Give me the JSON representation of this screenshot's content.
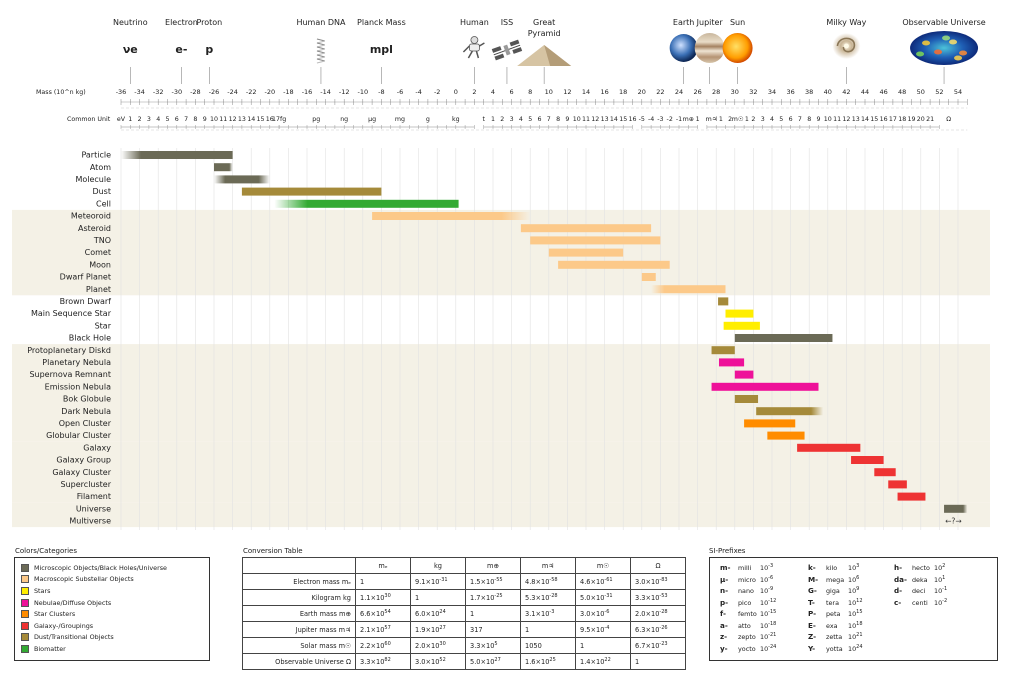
{
  "chart_data": {
    "type": "range-bar",
    "x_label_mass": "Mass (10^n kg)",
    "x_label_common": "Common Unit",
    "mass_ticks": [
      -36,
      -34,
      -32,
      -30,
      -28,
      -26,
      -24,
      -22,
      -20,
      -18,
      -16,
      -14,
      -12,
      -10,
      -8,
      -6,
      -4,
      -2,
      0,
      2,
      4,
      6,
      8,
      10,
      12,
      14,
      16,
      18,
      20,
      22,
      24,
      26,
      28,
      30,
      32,
      34,
      36,
      38,
      40,
      42,
      44,
      46,
      48,
      50,
      52,
      54
    ],
    "xlim": [
      -36,
      55
    ],
    "common_units": [
      {
        "x": -36,
        "t": "eV"
      },
      {
        "x": -35,
        "t": "1"
      },
      {
        "x": -34,
        "t": "2"
      },
      {
        "x": -33,
        "t": "3"
      },
      {
        "x": -32,
        "t": "4"
      },
      {
        "x": -31,
        "t": "5"
      },
      {
        "x": -30,
        "t": "6"
      },
      {
        "x": -29,
        "t": "7"
      },
      {
        "x": -28,
        "t": "8"
      },
      {
        "x": -27,
        "t": "9"
      },
      {
        "x": -26,
        "t": "10"
      },
      {
        "x": -25,
        "t": "11"
      },
      {
        "x": -24,
        "t": "12"
      },
      {
        "x": -23,
        "t": "13"
      },
      {
        "x": -22,
        "t": "14"
      },
      {
        "x": -21,
        "t": "15"
      },
      {
        "x": -20,
        "t": "16"
      },
      {
        "x": -19,
        "t": "17fg"
      },
      {
        "x": -15,
        "t": "pg"
      },
      {
        "x": -12,
        "t": "ng"
      },
      {
        "x": -9,
        "t": "µg"
      },
      {
        "x": -6,
        "t": "mg"
      },
      {
        "x": -3,
        "t": "g"
      },
      {
        "x": 0,
        "t": "kg"
      },
      {
        "x": 3,
        "t": "t"
      },
      {
        "x": 4,
        "t": "1"
      },
      {
        "x": 5,
        "t": "2"
      },
      {
        "x": 6,
        "t": "3"
      },
      {
        "x": 7,
        "t": "4"
      },
      {
        "x": 8,
        "t": "5"
      },
      {
        "x": 9,
        "t": "6"
      },
      {
        "x": 10,
        "t": "7"
      },
      {
        "x": 11,
        "t": "8"
      },
      {
        "x": 12,
        "t": "9"
      },
      {
        "x": 13,
        "t": "10"
      },
      {
        "x": 14,
        "t": "11"
      },
      {
        "x": 15,
        "t": "12"
      },
      {
        "x": 16,
        "t": "13"
      },
      {
        "x": 17,
        "t": "14"
      },
      {
        "x": 18,
        "t": "15"
      },
      {
        "x": 19,
        "t": "16"
      },
      {
        "x": 20,
        "t": "-5"
      },
      {
        "x": 21,
        "t": "-4"
      },
      {
        "x": 22,
        "t": "-3"
      },
      {
        "x": 23,
        "t": "-2"
      },
      {
        "x": 24,
        "t": "-1"
      },
      {
        "x": 25,
        "t": "m⊕"
      },
      {
        "x": 26,
        "t": "1"
      },
      {
        "x": 27.5,
        "t": "m♃"
      },
      {
        "x": 28.5,
        "t": "1"
      },
      {
        "x": 29.5,
        "t": "2"
      },
      {
        "x": 30.3,
        "t": "m☉"
      },
      {
        "x": 31.3,
        "t": "1"
      },
      {
        "x": 32,
        "t": "2"
      },
      {
        "x": 33,
        "t": "3"
      },
      {
        "x": 34,
        "t": "4"
      },
      {
        "x": 35,
        "t": "5"
      },
      {
        "x": 36,
        "t": "6"
      },
      {
        "x": 37,
        "t": "7"
      },
      {
        "x": 38,
        "t": "8"
      },
      {
        "x": 39,
        "t": "9"
      },
      {
        "x": 40,
        "t": "10"
      },
      {
        "x": 41,
        "t": "11"
      },
      {
        "x": 42,
        "t": "12"
      },
      {
        "x": 43,
        "t": "13"
      },
      {
        "x": 44,
        "t": "14"
      },
      {
        "x": 45,
        "t": "15"
      },
      {
        "x": 46,
        "t": "16"
      },
      {
        "x": 47,
        "t": "17"
      },
      {
        "x": 48,
        "t": "18"
      },
      {
        "x": 49,
        "t": "19"
      },
      {
        "x": 50,
        "t": "20"
      },
      {
        "x": 51,
        "t": "21"
      },
      {
        "x": 53,
        "t": "Ω"
      }
    ],
    "reference_objects": [
      {
        "x": -35,
        "label": "Neutrino",
        "symbol": "νe",
        "icon": "none"
      },
      {
        "x": -29.5,
        "label": "Electron",
        "symbol": "e-",
        "icon": "none"
      },
      {
        "x": -26.5,
        "label": "Proton",
        "symbol": "p",
        "icon": "none"
      },
      {
        "x": -14.5,
        "label": "Human DNA",
        "symbol": "",
        "icon": "dna-icon"
      },
      {
        "x": -8,
        "label": "Planck Mass",
        "symbol": "mpl",
        "icon": "none"
      },
      {
        "x": 2,
        "label": "Human",
        "symbol": "",
        "icon": "astronaut-icon"
      },
      {
        "x": 5.5,
        "label": "ISS",
        "symbol": "",
        "icon": "iss-icon"
      },
      {
        "x": 9.5,
        "label": "Great Pyramid",
        "symbol": "",
        "icon": "pyramid-icon"
      },
      {
        "x": 24.5,
        "label": "Earth",
        "symbol": "",
        "icon": "earth-icon"
      },
      {
        "x": 27.3,
        "label": "Jupiter",
        "symbol": "",
        "icon": "jupiter-icon"
      },
      {
        "x": 30.3,
        "label": "Sun",
        "symbol": "",
        "icon": "sun-icon"
      },
      {
        "x": 42,
        "label": "Milky Way",
        "symbol": "",
        "icon": "galaxy-icon"
      },
      {
        "x": 52.5,
        "label": "Observable Universe",
        "symbol": "",
        "icon": "cmb-icon"
      }
    ],
    "categories": [
      {
        "key": "micro",
        "label": "Microscopic Objects/Black Holes/Universe",
        "color": "#6b6a56"
      },
      {
        "key": "macro",
        "label": "Macroscopic Substellar Objects",
        "color": "#fcc989"
      },
      {
        "key": "stars",
        "label": "Stars",
        "color": "#ffee00"
      },
      {
        "key": "nebula",
        "label": "Nebulae/Diffuse Objects",
        "color": "#ee1199"
      },
      {
        "key": "cluster",
        "label": "Star Clusters",
        "color": "#ff8c00"
      },
      {
        "key": "galaxy",
        "label": "Galaxy-/Groupings",
        "color": "#ee3333"
      },
      {
        "key": "dust",
        "label": "Dust/Transitional Objects",
        "color": "#a58a3a"
      },
      {
        "key": "bio",
        "label": "Biomatter",
        "color": "#33aa33"
      }
    ],
    "objects": [
      {
        "name": "Particle",
        "min": -36,
        "max": -24,
        "cat": "micro",
        "fade": "left"
      },
      {
        "name": "Atom",
        "min": -26,
        "max": -24,
        "cat": "micro",
        "fade": "right"
      },
      {
        "name": "Molecule",
        "min": -26,
        "max": -20,
        "cat": "micro",
        "fade": "both"
      },
      {
        "name": "Dust",
        "min": -23,
        "max": -8,
        "cat": "dust",
        "fade": "none"
      },
      {
        "name": "Cell",
        "min": -19.5,
        "max": 0.3,
        "cat": "bio",
        "fade": "left"
      },
      {
        "name": "Meteoroid",
        "min": -9,
        "max": 8,
        "cat": "macro",
        "fade": "right"
      },
      {
        "name": "Asteroid",
        "min": 7,
        "max": 21,
        "cat": "macro",
        "fade": "none"
      },
      {
        "name": "TNO",
        "min": 8,
        "max": 22,
        "cat": "macro",
        "fade": "none"
      },
      {
        "name": "Comet",
        "min": 10,
        "max": 18,
        "cat": "macro",
        "fade": "none"
      },
      {
        "name": "Moon",
        "min": 11,
        "max": 23,
        "cat": "macro",
        "fade": "none"
      },
      {
        "name": "Dwarf Planet",
        "min": 20,
        "max": 21.5,
        "cat": "macro",
        "fade": "none"
      },
      {
        "name": "Planet",
        "min": 21,
        "max": 29,
        "cat": "macro",
        "fade": "left"
      },
      {
        "name": "Brown Dwarf",
        "min": 28.2,
        "max": 29.3,
        "cat": "dust",
        "fade": "none"
      },
      {
        "name": "Main Sequence Star",
        "min": 29,
        "max": 32,
        "cat": "stars",
        "fade": "none"
      },
      {
        "name": "Star",
        "min": 28.8,
        "max": 32.7,
        "cat": "stars",
        "fade": "none"
      },
      {
        "name": "Black Hole",
        "min": 30,
        "max": 40.5,
        "cat": "micro",
        "fade": "none"
      },
      {
        "name": "Protoplanetary Diskd",
        "min": 27.5,
        "max": 30,
        "cat": "dust",
        "fade": "none"
      },
      {
        "name": "Planetary Nebula",
        "min": 28.3,
        "max": 31,
        "cat": "nebula",
        "fade": "none"
      },
      {
        "name": "Supernova Remnant",
        "min": 30,
        "max": 32,
        "cat": "nebula",
        "fade": "none"
      },
      {
        "name": "Emission Nebula",
        "min": 27.5,
        "max": 39,
        "cat": "nebula",
        "fade": "none"
      },
      {
        "name": "Bok Globule",
        "min": 30,
        "max": 32.5,
        "cat": "dust",
        "fade": "none"
      },
      {
        "name": "Dark Nebula",
        "min": 32.3,
        "max": 39.5,
        "cat": "dust",
        "fade": "right"
      },
      {
        "name": "Open Cluster",
        "min": 31,
        "max": 36.5,
        "cat": "cluster",
        "fade": "none"
      },
      {
        "name": "Globular Cluster",
        "min": 33.5,
        "max": 37.5,
        "cat": "cluster",
        "fade": "none"
      },
      {
        "name": "Galaxy",
        "min": 36.7,
        "max": 43.5,
        "cat": "galaxy",
        "fade": "none"
      },
      {
        "name": "Galaxy Group",
        "min": 42.5,
        "max": 46,
        "cat": "galaxy",
        "fade": "none"
      },
      {
        "name": "Galaxy Cluster",
        "min": 45,
        "max": 47.3,
        "cat": "galaxy",
        "fade": "none"
      },
      {
        "name": "Supercluster",
        "min": 46.5,
        "max": 48.5,
        "cat": "galaxy",
        "fade": "none"
      },
      {
        "name": "Filament",
        "min": 47.5,
        "max": 50.5,
        "cat": "galaxy",
        "fade": "none"
      },
      {
        "name": "Universe",
        "min": 52.5,
        "max": 55,
        "cat": "micro",
        "fade": "right"
      },
      {
        "name": "Multiverse",
        "min": null,
        "max": null,
        "cat": "none",
        "fade": "none",
        "note": "←?→",
        "note_x": 53.5
      }
    ],
    "bands": [
      {
        "from": 5,
        "to": 11,
        "color": "#f4f1e6"
      },
      {
        "from": 16,
        "to": 23,
        "color": "#f4f1e6"
      },
      {
        "from": 24,
        "to": 28,
        "color": "#f4f1e6"
      },
      {
        "from": 29,
        "to": 30,
        "color": "#f4f1e6"
      }
    ]
  },
  "legend": {
    "title": "Colors/Categories"
  },
  "conversion": {
    "title": "Conversion Table",
    "columns": [
      "mₑ",
      "kg",
      "m⊕",
      "m♃",
      "m☉",
      "Ω"
    ],
    "rows": [
      {
        "label": "Electron mass mₑ",
        "cells": [
          [
            "1",
            ""
          ],
          [
            "9.1×10",
            "-31"
          ],
          [
            "1.5×10",
            "-55"
          ],
          [
            "4.8×10",
            "-58"
          ],
          [
            "4.6×10",
            "-61"
          ],
          [
            "3.0×10",
            "-83"
          ]
        ]
      },
      {
        "label": "Kilogram kg",
        "cells": [
          [
            "1.1×10",
            "30"
          ],
          [
            "1",
            ""
          ],
          [
            "1.7×10",
            "-25"
          ],
          [
            "5.3×10",
            "-28"
          ],
          [
            "5.0×10",
            "-31"
          ],
          [
            "3.3×10",
            "-53"
          ]
        ]
      },
      {
        "label": "Earth mass m⊕",
        "cells": [
          [
            "6.6×10",
            "54"
          ],
          [
            "6.0×10",
            "24"
          ],
          [
            "1",
            ""
          ],
          [
            "3.1×10",
            "-3"
          ],
          [
            "3.0×10",
            "-6"
          ],
          [
            "2.0×10",
            "-28"
          ]
        ]
      },
      {
        "label": "Jupiter mass m♃",
        "cells": [
          [
            "2.1×10",
            "57"
          ],
          [
            "1.9×10",
            "27"
          ],
          [
            "317",
            ""
          ],
          [
            "1",
            ""
          ],
          [
            "9.5×10",
            "-4"
          ],
          [
            "6.3×10",
            "-26"
          ]
        ]
      },
      {
        "label": "Solar mass m☉",
        "cells": [
          [
            "2.2×10",
            "60"
          ],
          [
            "2.0×10",
            "30"
          ],
          [
            "3.3×10",
            "5"
          ],
          [
            "1050",
            ""
          ],
          [
            "1",
            ""
          ],
          [
            "6.7×10",
            "-23"
          ]
        ]
      },
      {
        "label": "Observable Universe Ω",
        "cells": [
          [
            "3.3×10",
            "82"
          ],
          [
            "3.0×10",
            "52"
          ],
          [
            "5.0×10",
            "27"
          ],
          [
            "1.6×10",
            "25"
          ],
          [
            "1.4×10",
            "22"
          ],
          [
            "1",
            ""
          ]
        ]
      }
    ]
  },
  "si_prefixes": {
    "title": "SI-Prefixes",
    "columns": [
      [
        [
          "m-",
          "milli",
          "10",
          "-3"
        ],
        [
          "µ-",
          "micro",
          "10",
          "-6"
        ],
        [
          "n-",
          "nano",
          "10",
          "-9"
        ],
        [
          "p-",
          "pico",
          "10",
          "-12"
        ],
        [
          "f-",
          "femto",
          "10",
          "-15"
        ],
        [
          "a-",
          "atto",
          "10",
          "-18"
        ],
        [
          "z-",
          "zepto",
          "10",
          "-21"
        ],
        [
          "y-",
          "yocto",
          "10",
          "-24"
        ]
      ],
      [
        [
          "k-",
          "kilo",
          "10",
          "3"
        ],
        [
          "M-",
          "mega",
          "10",
          "6"
        ],
        [
          "G-",
          "giga",
          "10",
          "9"
        ],
        [
          "T-",
          "tera",
          "10",
          "12"
        ],
        [
          "P-",
          "peta",
          "10",
          "15"
        ],
        [
          "E-",
          "exa",
          "10",
          "18"
        ],
        [
          "Z-",
          "zetta",
          "10",
          "21"
        ],
        [
          "Y-",
          "yotta",
          "10",
          "24"
        ]
      ],
      [
        [
          "h-",
          "hecto",
          "10",
          "2"
        ],
        [
          "da-",
          "deka",
          "10",
          "1"
        ],
        [
          "d-",
          "deci",
          "10",
          "-1"
        ],
        [
          "c-",
          "centi",
          "10",
          "-2"
        ]
      ]
    ]
  }
}
